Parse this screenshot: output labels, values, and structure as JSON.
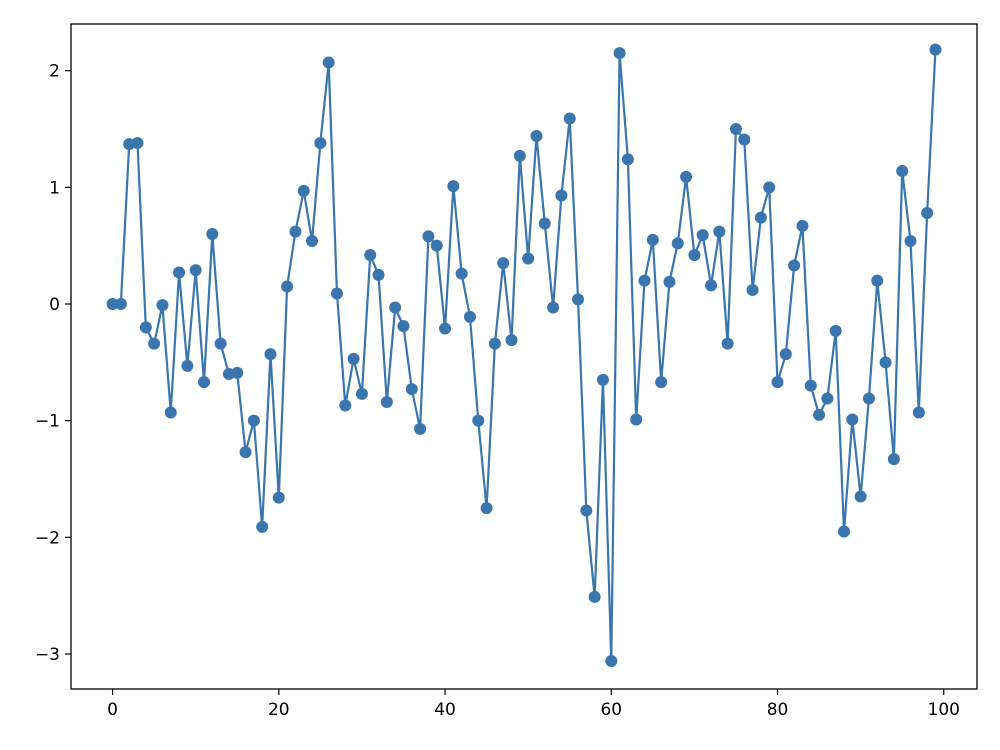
{
  "chart_data": {
    "type": "line",
    "title": "",
    "xlabel": "",
    "ylabel": "",
    "xlim": [
      -5,
      104
    ],
    "ylim": [
      -3.3,
      2.4
    ],
    "x_ticks": [
      0,
      20,
      40,
      60,
      80,
      100
    ],
    "x_tick_labels": [
      "0",
      "20",
      "40",
      "60",
      "80",
      "100"
    ],
    "y_ticks": [
      -3,
      -2,
      -1,
      0,
      1,
      2
    ],
    "y_tick_labels": [
      "−3",
      "−2",
      "−1",
      "0",
      "1",
      "2"
    ],
    "grid": false,
    "legend": "none",
    "colors": {
      "series": "#3a76ad",
      "axes": "#000000",
      "background": "#ffffff"
    },
    "series": [
      {
        "marker": "circle",
        "x": [
          0,
          1,
          2,
          3,
          4,
          5,
          6,
          7,
          8,
          9,
          10,
          11,
          12,
          13,
          14,
          15,
          16,
          17,
          18,
          19,
          20,
          21,
          22,
          23,
          24,
          25,
          26,
          27,
          28,
          29,
          30,
          31,
          32,
          33,
          34,
          35,
          36,
          37,
          38,
          39,
          40,
          41,
          42,
          43,
          44,
          45,
          46,
          47,
          48,
          49,
          50,
          51,
          52,
          53,
          54,
          55,
          56,
          57,
          58,
          59,
          60,
          61,
          62,
          63,
          64,
          65,
          66,
          67,
          68,
          69,
          70,
          71,
          72,
          73,
          74,
          75,
          76,
          77,
          78,
          79,
          80,
          81,
          82,
          83,
          84,
          85,
          86,
          87,
          88,
          89,
          90,
          91,
          92,
          93,
          94,
          95,
          96,
          97,
          98,
          99
        ],
        "y": [
          0.0,
          0.0,
          1.37,
          1.38,
          -0.2,
          -0.34,
          -0.01,
          -0.93,
          0.27,
          -0.53,
          0.29,
          -0.67,
          0.6,
          -0.34,
          -0.6,
          -0.59,
          -1.27,
          -1.0,
          -1.91,
          -0.43,
          -1.66,
          0.15,
          0.62,
          0.97,
          0.54,
          1.38,
          2.07,
          0.09,
          -0.87,
          -0.47,
          -0.77,
          0.42,
          0.25,
          -0.84,
          -0.03,
          -0.19,
          -0.73,
          -1.07,
          0.58,
          0.5,
          -0.21,
          1.01,
          0.26,
          -0.11,
          -1.0,
          -1.75,
          -0.34,
          0.35,
          -0.31,
          1.27,
          0.39,
          1.44,
          0.69,
          -0.03,
          0.93,
          1.59,
          0.04,
          -1.77,
          -2.51,
          -0.65,
          -3.06,
          2.15,
          1.24,
          -0.99,
          0.2,
          0.55,
          -0.67,
          0.19,
          0.52,
          1.09,
          0.42,
          0.59,
          0.16,
          0.62,
          -0.34,
          1.5,
          1.41,
          0.12,
          0.74,
          1.0,
          -0.67,
          -0.43,
          0.33,
          0.67,
          -0.7,
          -0.95,
          -0.81,
          -0.23,
          -1.95,
          -0.99,
          -1.65,
          -0.81,
          0.2,
          -0.5,
          -1.33,
          1.14,
          0.54,
          -0.93,
          0.78,
          2.18
        ]
      }
    ]
  }
}
